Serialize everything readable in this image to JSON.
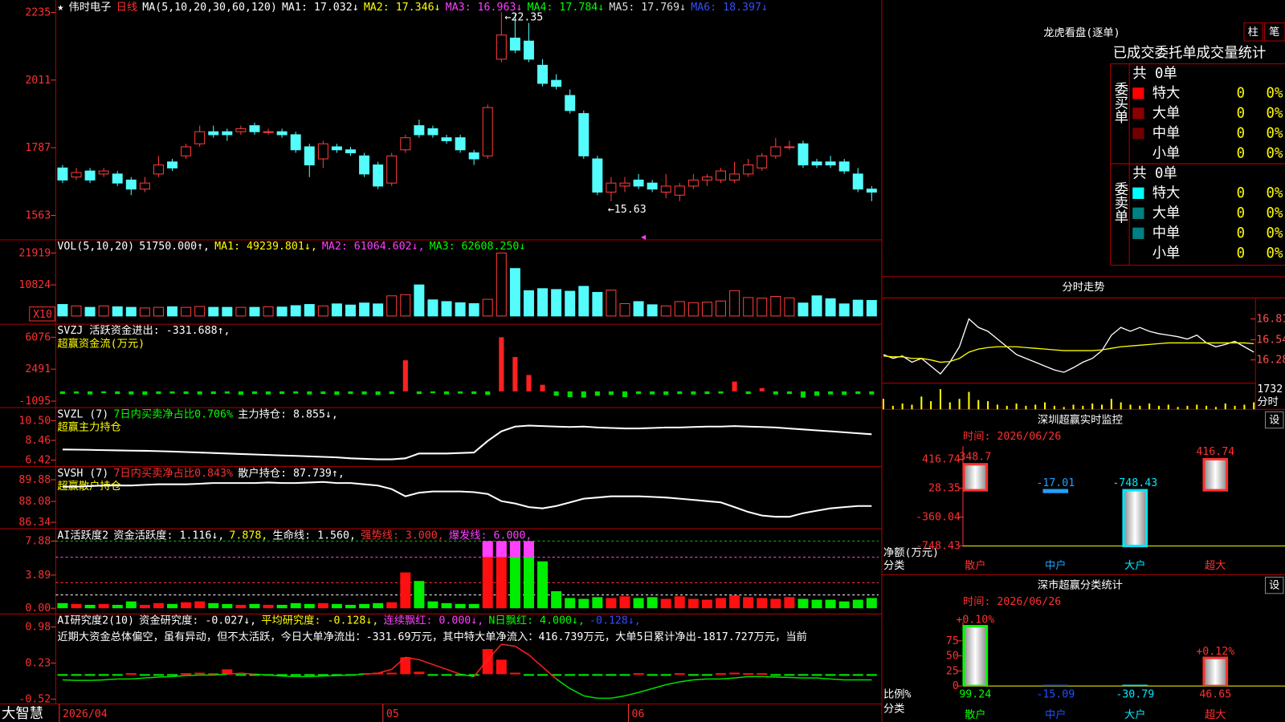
{
  "price": {
    "legend": [
      {
        "text": "★",
        "color": "#ffffff"
      },
      {
        "text": "伟时电子",
        "color": "#ffffff"
      },
      {
        "text": "日线",
        "color": "#ff3030"
      },
      {
        "text": "MA(5,10,20,30,60,120)",
        "color": "#ffffff"
      },
      {
        "text": "MA1: 17.032↓",
        "color": "#ffffff"
      },
      {
        "text": "MA2: 17.346↓",
        "color": "#ffff00"
      },
      {
        "text": "MA3: 16.963↓",
        "color": "#ff40ff"
      },
      {
        "text": "MA4: 17.784↓",
        "color": "#00ff00"
      },
      {
        "text": "MA5: 17.769↓",
        "color": "#dddddd"
      },
      {
        "text": "MA6: 18.397↓",
        "color": "#3050ff"
      }
    ],
    "ylim": [
      1482,
      2276
    ],
    "yticks": [
      1563,
      1787,
      2011,
      2235
    ],
    "up_color": "#ff3c3c",
    "down_color": "#54fcfc",
    "annotations": [
      "←22.35",
      "←15.63"
    ],
    "candles": {
      "open": [
        1720,
        1690,
        1710,
        1700,
        1700,
        1680,
        1650,
        1700,
        1740,
        1760,
        1800,
        1840,
        1840,
        1840,
        1860,
        1840,
        1840,
        1830,
        1790,
        1750,
        1790,
        1780,
        1760,
        1730,
        1670,
        1780,
        1860,
        1850,
        1820,
        1820,
        1770,
        1760,
        2080,
        2150,
        2140,
        2060,
        2010,
        1960,
        1900,
        1750,
        1640,
        1660,
        1680,
        1670,
        1640,
        1630,
        1660,
        1680,
        1680,
        1680,
        1700,
        1720,
        1760,
        1790,
        1800,
        1740,
        1740,
        1740,
        1700,
        1650
      ],
      "close": [
        1680,
        1705,
        1680,
        1710,
        1670,
        1650,
        1670,
        1730,
        1720,
        1790,
        1840,
        1830,
        1830,
        1850,
        1840,
        1840,
        1830,
        1780,
        1730,
        1800,
        1780,
        1770,
        1700,
        1660,
        1760,
        1820,
        1830,
        1830,
        1810,
        1780,
        1750,
        1920,
        2160,
        2110,
        2080,
        2000,
        1990,
        1910,
        1760,
        1640,
        1670,
        1670,
        1660,
        1650,
        1660,
        1660,
        1680,
        1690,
        1710,
        1700,
        1730,
        1760,
        1790,
        1790,
        1730,
        1730,
        1730,
        1710,
        1650,
        1640
      ],
      "high": [
        1730,
        1720,
        1720,
        1720,
        1710,
        1690,
        1690,
        1760,
        1750,
        1800,
        1860,
        1860,
        1850,
        1860,
        1870,
        1850,
        1850,
        1840,
        1800,
        1810,
        1800,
        1790,
        1770,
        1740,
        1770,
        1830,
        1880,
        1860,
        1830,
        1830,
        1780,
        1930,
        2235,
        2230,
        2200,
        2080,
        2030,
        1980,
        1910,
        1760,
        1690,
        1690,
        1700,
        1680,
        1700,
        1670,
        1700,
        1700,
        1720,
        1740,
        1750,
        1770,
        1820,
        1810,
        1810,
        1750,
        1760,
        1750,
        1720,
        1660
      ],
      "low": [
        1670,
        1680,
        1670,
        1690,
        1660,
        1630,
        1640,
        1690,
        1710,
        1750,
        1790,
        1820,
        1810,
        1830,
        1830,
        1830,
        1820,
        1770,
        1690,
        1720,
        1770,
        1760,
        1690,
        1650,
        1660,
        1770,
        1820,
        1820,
        1800,
        1770,
        1730,
        1750,
        2070,
        2100,
        2070,
        1990,
        1980,
        1900,
        1750,
        1630,
        1610,
        1640,
        1650,
        1640,
        1620,
        1610,
        1650,
        1660,
        1670,
        1670,
        1690,
        1710,
        1750,
        1780,
        1720,
        1720,
        1720,
        1700,
        1640,
        1610
      ]
    }
  },
  "volume": {
    "legend": [
      {
        "text": "VOL(5,10,20)",
        "color": "#ffffff"
      },
      {
        "text": "51750.000↑,",
        "color": "#ffffff"
      },
      {
        "text": "MA1: 49239.801↓,",
        "color": "#ffff00"
      },
      {
        "text": "MA2: 61064.602↓,",
        "color": "#ff40ff"
      },
      {
        "text": "MA3: 62608.250↓",
        "color": "#00ff00"
      }
    ],
    "unit_label": "X10",
    "ylim": [
      -2845,
      26471
    ],
    "yticks": [
      10824,
      21919
    ],
    "values": [
      4000,
      3500,
      3000,
      3500,
      3200,
      3000,
      2800,
      3000,
      3200,
      3000,
      3300,
      3000,
      3000,
      3000,
      3000,
      3200,
      3100,
      3600,
      4000,
      3500,
      4200,
      3800,
      4500,
      4200,
      7000,
      7400,
      10800,
      5600,
      5000,
      4600,
      4300,
      5800,
      21900,
      16500,
      8800,
      9500,
      9200,
      8600,
      10300,
      8200,
      9000,
      4300,
      5000,
      3900,
      3500,
      5000,
      4600,
      4800,
      5200,
      8800,
      6400,
      6200,
      6800,
      6300,
      4500,
      7000,
      6000,
      4200,
      5500,
      5400
    ]
  },
  "flow": {
    "legend": [
      {
        "text": "SVZJ  活跃资金进出: -331.688↑,",
        "color": "#ffffff"
      }
    ],
    "subtitle": "超赢资金流(万元)",
    "ylim": [
      -1830,
      7547
    ],
    "yticks": [
      -1095,
      2491,
      6076
    ],
    "pos_color": "#ff2020",
    "neg_color": "#00dd00",
    "values": [
      -300,
      -250,
      -350,
      -200,
      -300,
      -350,
      -400,
      -300,
      -250,
      -300,
      -350,
      -300,
      -250,
      -400,
      -300,
      -350,
      -300,
      -250,
      -350,
      -300,
      -400,
      -300,
      -350,
      -400,
      -300,
      3490,
      -300,
      -200,
      -350,
      -250,
      -300,
      -400,
      6076,
      3860,
      1840,
      740,
      -500,
      -650,
      -700,
      -500,
      -400,
      -650,
      -300,
      -350,
      -400,
      -300,
      -350,
      -300,
      -250,
      1100,
      -300,
      370,
      -350,
      -300,
      -700,
      -500,
      -350,
      -400,
      -300,
      -350
    ]
  },
  "main_hold": {
    "legend": [
      {
        "text": "SVZL (7)",
        "color": "#ffffff"
      },
      {
        "text": "7日内买卖净占比0.706%",
        "color": "#00ff00"
      },
      {
        "text": "主力持仓: 8.855↓,",
        "color": "#ffffff"
      }
    ],
    "subtitle": "超赢主力持仓",
    "ylim": [
      5.74,
      11.86
    ],
    "yticks": [
      6.42,
      8.46,
      {
        "value": 10.5,
        "label": "10.50"
      }
    ],
    "color": "#ffffff",
    "values": [
      7.52,
      7.5,
      7.48,
      7.45,
      7.42,
      7.4,
      7.38,
      7.35,
      7.3,
      7.25,
      7.2,
      7.15,
      7.1,
      7.05,
      7.0,
      6.95,
      6.9,
      6.85,
      6.8,
      6.75,
      6.7,
      6.6,
      6.55,
      6.5,
      6.5,
      6.6,
      7.1,
      7.1,
      7.1,
      7.15,
      7.2,
      8.4,
      9.4,
      9.9,
      10.0,
      9.95,
      9.9,
      9.85,
      9.9,
      9.8,
      9.75,
      9.7,
      9.7,
      9.75,
      9.8,
      9.8,
      9.85,
      9.9,
      9.9,
      9.95,
      9.9,
      9.85,
      9.8,
      9.7,
      9.6,
      9.5,
      9.4,
      9.3,
      9.2,
      9.1
    ]
  },
  "retail_hold": {
    "legend": [
      {
        "text": "SVSH (7)",
        "color": "#ffffff"
      },
      {
        "text": "7日内买卖净占比0.843%",
        "color": "#ff3030"
      },
      {
        "text": "散户持仓: 87.739↑,",
        "color": "#ffffff"
      }
    ],
    "subtitle": "超赢散户持仓",
    "ylim": [
      85.8,
      90.97
    ],
    "yticks": [
      86.34,
      88.08,
      89.88
    ],
    "color": "#ffffff",
    "values": [
      89.3,
      89.3,
      89.35,
      89.4,
      89.4,
      89.4,
      89.45,
      89.5,
      89.5,
      89.5,
      89.55,
      89.6,
      89.6,
      89.6,
      89.6,
      89.65,
      89.6,
      89.6,
      89.65,
      89.7,
      89.6,
      89.6,
      89.5,
      89.4,
      89.1,
      88.5,
      88.8,
      88.9,
      88.9,
      88.9,
      88.85,
      88.7,
      88.1,
      87.9,
      87.6,
      87.5,
      87.7,
      88.0,
      88.3,
      88.4,
      88.5,
      88.5,
      88.5,
      88.45,
      88.4,
      88.3,
      88.2,
      88.1,
      88.0,
      87.6,
      87.2,
      86.9,
      86.8,
      86.8,
      87.1,
      87.3,
      87.5,
      87.6,
      87.7,
      87.7
    ]
  },
  "activity": {
    "legend": [
      {
        "text": "AI活跃度2",
        "color": "#ffffff"
      },
      {
        "text": "资金活跃度: 1.116↓,",
        "color": "#ffffff"
      },
      {
        "text": "7.878,",
        "color": "#ffff00"
      },
      {
        "text": "生命线: 1.560,",
        "color": "#ffffff"
      },
      {
        "text": "强势线: 3.000,",
        "color": "#ff3030"
      },
      {
        "text": "爆发线: 6.000,",
        "color": "#ff40ff"
      }
    ],
    "ylim": [
      -0.67,
      9.32
    ],
    "yticks": [
      {
        "value": 0,
        "label": "0.00"
      },
      3.89,
      7.88
    ],
    "levels": [
      {
        "value": 7.878,
        "color": "#00c000"
      },
      {
        "value": 6,
        "color": "#ff40ff"
      },
      {
        "value": 3,
        "color": "#ff3030"
      },
      {
        "value": 1.56,
        "color": "#ffffff"
      }
    ],
    "burst_color": "#ff40ff",
    "values": [
      0.6,
      0.5,
      0.4,
      0.5,
      0.4,
      0.8,
      0.4,
      0.6,
      0.5,
      0.7,
      0.8,
      0.6,
      0.5,
      0.4,
      0.5,
      0.4,
      0.4,
      0.6,
      0.5,
      0.6,
      0.5,
      0.4,
      0.5,
      0.6,
      0.7,
      4.2,
      3.2,
      0.8,
      0.6,
      0.5,
      0.5,
      7.88,
      7.88,
      7.88,
      7.88,
      5.5,
      2.0,
      1.2,
      1.1,
      1.3,
      1.2,
      1.4,
      1.2,
      1.3,
      1.1,
      1.4,
      1.1,
      1.0,
      1.2,
      1.5,
      1.3,
      1.2,
      1.1,
      1.3,
      1.1,
      1.0,
      1.0,
      0.8,
      1.0,
      1.2
    ]
  },
  "research": {
    "legend": [
      {
        "text": "AI研究度2(10)",
        "color": "#ffffff"
      },
      {
        "text": "资金研究度: -0.027↓,",
        "color": "#ffffff"
      },
      {
        "text": "平均研究度: -0.128↓,",
        "color": "#ffff00"
      },
      {
        "text": "连续飘红: 0.000↓,",
        "color": "#ff40ff"
      },
      {
        "text": "N日飘红: 4.000↓,",
        "color": "#00ff00"
      },
      {
        "text": "-0.128↓,",
        "color": "#3050ff"
      }
    ],
    "summary": "近期大资金总体偏空，虽有异动，但不太活跃，今日大单净流出：-331.69万元，其中特大单净流入：416.739万元，大单5日累计净出-1817.727万元，当前",
    "ylim": [
      -0.62,
      1.25
    ],
    "yticks": [
      -0.52,
      0.23,
      0.98
    ],
    "bars": [
      -0.03,
      -0.03,
      -0.02,
      -0.03,
      -0.03,
      0.02,
      -0.03,
      -0.03,
      -0.02,
      0.02,
      0.03,
      0.02,
      0.1,
      -0.03,
      -0.03,
      -0.02,
      -0.03,
      -0.03,
      -0.02,
      -0.03,
      -0.03,
      -0.02,
      0.02,
      0.03,
      0.03,
      0.35,
      0.05,
      -0.03,
      -0.02,
      -0.03,
      -0.03,
      0.52,
      0.3,
      0.03,
      -0.02,
      -0.03,
      -0.03,
      -0.03,
      -0.03,
      -0.03,
      -0.02,
      -0.03,
      0.02,
      -0.03,
      -0.02,
      0.02,
      -0.03,
      -0.02,
      0.02,
      0.03,
      0.02,
      0.02,
      -0.03,
      -0.02,
      -0.03,
      -0.02,
      -0.03,
      -0.03,
      -0.02,
      -0.03
    ],
    "line": [
      -0.12,
      -0.13,
      -0.13,
      -0.12,
      -0.1,
      -0.1,
      -0.08,
      -0.06,
      -0.05,
      -0.03,
      -0.02,
      -0.02,
      0.0,
      0.02,
      0.0,
      -0.02,
      -0.04,
      -0.05,
      -0.05,
      -0.04,
      -0.03,
      -0.02,
      0.0,
      0.02,
      0.1,
      0.35,
      0.3,
      0.2,
      0.1,
      0.0,
      -0.05,
      0.3,
      0.62,
      0.58,
      0.4,
      0.15,
      -0.1,
      -0.3,
      -0.45,
      -0.5,
      -0.5,
      -0.45,
      -0.38,
      -0.3,
      -0.22,
      -0.16,
      -0.12,
      -0.1,
      -0.1,
      -0.08,
      -0.05,
      -0.05,
      -0.06,
      -0.07,
      -0.08,
      -0.08,
      -0.1,
      -0.12,
      -0.12,
      -0.12
    ]
  },
  "date_axis": [
    "2026/04",
    "05",
    "06"
  ],
  "brand": "大智慧",
  "dragon": {
    "title": "龙虎看盘(逐单)",
    "buttons": [
      "柱",
      "笔"
    ],
    "heading": "已成交委托单成交量统计",
    "buy": {
      "side": "委买单",
      "total": "共 0单",
      "rows": [
        {
          "label": "特大",
          "count": "0",
          "pct": "0%",
          "color": "#ff0000"
        },
        {
          "label": "大单",
          "count": "0",
          "pct": "0%",
          "color": "#8b0000"
        },
        {
          "label": "中单",
          "count": "0",
          "pct": "0%",
          "color": "#700000"
        },
        {
          "label": "小单",
          "count": "0",
          "pct": "0%",
          "color": "#000000"
        }
      ]
    },
    "sell": {
      "side": "委卖单",
      "total": "共 0单",
      "rows": [
        {
          "label": "特大",
          "count": "0",
          "pct": "0%",
          "color": "#00ffff"
        },
        {
          "label": "大单",
          "count": "0",
          "pct": "0%",
          "color": "#008080"
        },
        {
          "label": "中单",
          "count": "0",
          "pct": "0%",
          "color": "#008080"
        },
        {
          "label": "小单",
          "count": "0",
          "pct": "0%",
          "color": "#000000"
        }
      ]
    }
  },
  "intraday": {
    "title": "分时走势",
    "ylim": [
      15.98,
      17.06
    ],
    "yticks": [
      16.28,
      16.54,
      16.81
    ],
    "vol_ylim": [
      0,
      2259
    ],
    "vol_ticks": [
      1732
    ],
    "vol_label": "分时",
    "price": [
      16.35,
      16.3,
      16.33,
      16.25,
      16.3,
      16.2,
      16.1,
      16.25,
      16.45,
      16.81,
      16.7,
      16.65,
      16.55,
      16.45,
      16.35,
      16.3,
      16.25,
      16.2,
      16.15,
      16.12,
      16.18,
      16.25,
      16.3,
      16.4,
      16.6,
      16.7,
      16.65,
      16.7,
      16.65,
      16.62,
      16.6,
      16.58,
      16.55,
      16.6,
      16.5,
      16.45,
      16.48,
      16.52,
      16.45,
      16.38
    ],
    "average": [
      16.33,
      16.32,
      16.32,
      16.3,
      16.3,
      16.28,
      16.25,
      16.26,
      16.3,
      16.38,
      16.42,
      16.44,
      16.45,
      16.45,
      16.45,
      16.44,
      16.43,
      16.42,
      16.41,
      16.4,
      16.4,
      16.4,
      16.4,
      16.41,
      16.43,
      16.45,
      16.46,
      16.47,
      16.48,
      16.49,
      16.5,
      16.5,
      16.5,
      16.5,
      16.5,
      16.5,
      16.5,
      16.5,
      16.5,
      16.49
    ],
    "volume": [
      900,
      300,
      500,
      400,
      1100,
      700,
      1732,
      600,
      900,
      1500,
      800,
      700,
      400,
      300,
      500,
      300,
      400,
      600,
      300,
      200,
      400,
      300,
      500,
      400,
      900,
      600,
      400,
      300,
      500,
      300,
      400,
      200,
      300,
      400,
      300,
      200,
      500,
      300,
      400,
      600
    ]
  },
  "monitor": {
    "title": "深圳超赢实时监控",
    "button": "设",
    "time": "时间: 2026/06/26",
    "y_label": "净额(万元)",
    "x_label": "分类",
    "categories": [
      "散户",
      "中户",
      "大户",
      "超大"
    ],
    "colors": [
      "#ff3030",
      "#20a0ff",
      "#00e8ff",
      "#ff3030"
    ],
    "values": [
      348.7,
      -17.01,
      -748.43,
      416.74
    ],
    "ylim": [
      -748.43,
      592
    ],
    "yticks": [
      -748.43,
      -360.04,
      28.35,
      416.74
    ]
  },
  "stats": {
    "title": "深市超赢分类统计",
    "button": "设",
    "time": "时间: 2026/06/26",
    "y_label": "比例%",
    "x_label": "分类",
    "categories": [
      "散户",
      "中户",
      "大户",
      "超大"
    ],
    "colors": [
      "#00ff00",
      "#2050ff",
      "#00e8ff",
      "#ff3030"
    ],
    "values": [
      99.24,
      -15.09,
      -30.79,
      46.65
    ],
    "notes": [
      "+0.10%",
      null,
      null,
      "+0.12%"
    ],
    "ylim": [
      0,
      106
    ],
    "yticks": [
      0,
      25,
      50,
      75
    ]
  }
}
